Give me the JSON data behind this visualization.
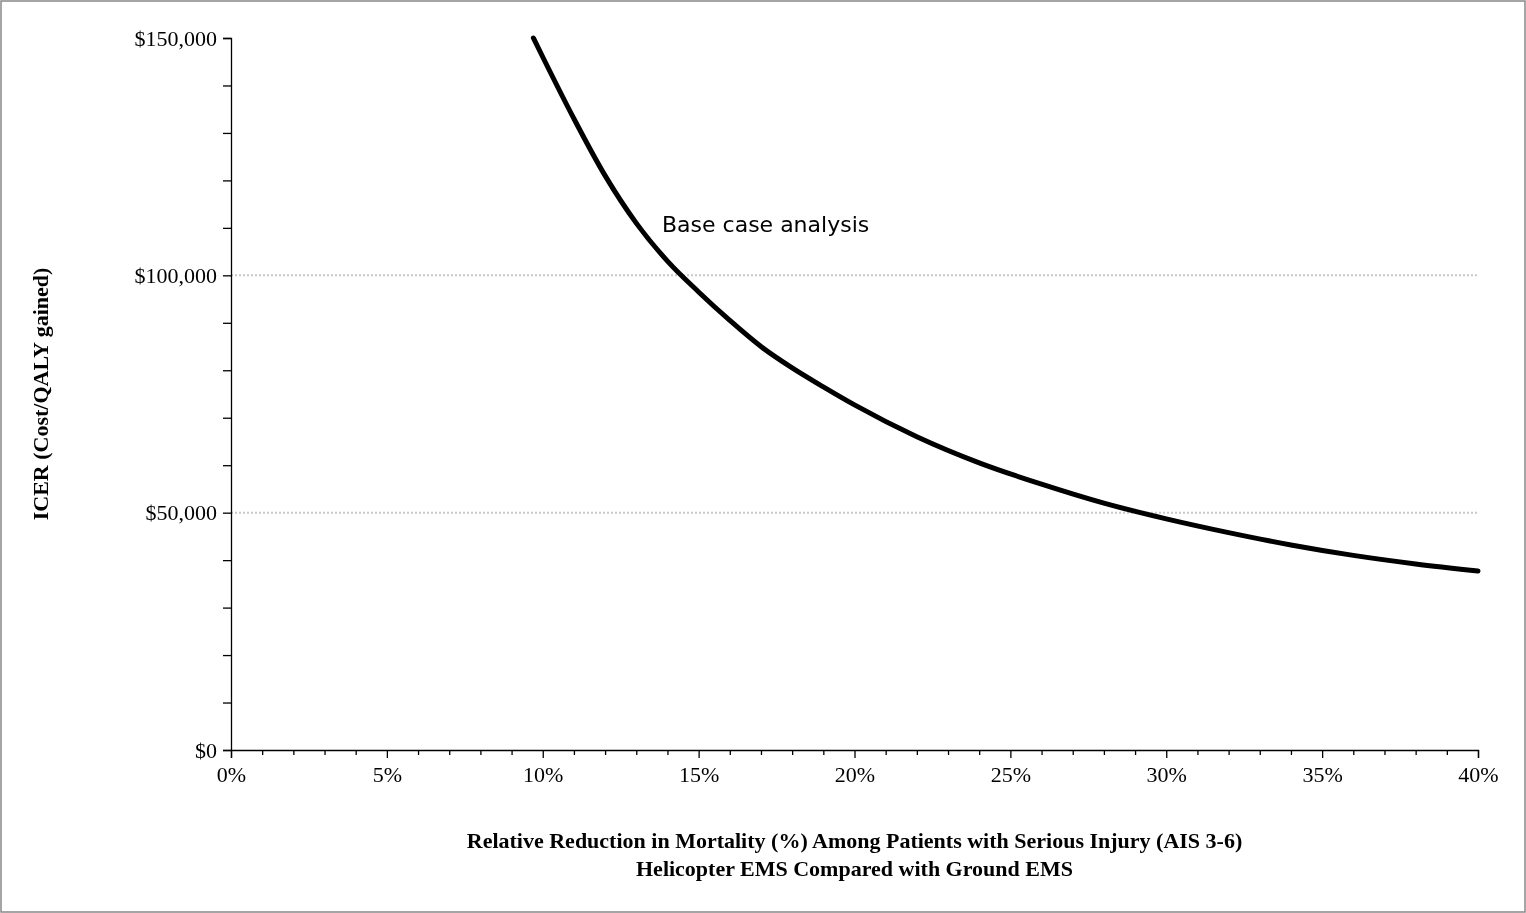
{
  "chart_data": {
    "type": "line",
    "xlabel": "Relative Reduction in Mortality (%) Among Patients with Serious Injury (AIS 3-6)\nHelicopter EMS Compared with Ground EMS",
    "ylabel": "ICER (Cost/QALY gained)",
    "x": [
      9.7,
      10,
      11,
      12,
      13,
      14,
      15,
      16,
      17,
      18,
      19,
      20,
      22,
      24,
      26,
      28,
      30,
      32,
      34,
      36,
      38,
      40
    ],
    "series": [
      {
        "color": "#000000",
        "values": [
          150000,
          146000,
          133000,
          121000,
          111000,
          103000,
          96500,
          90500,
          85000,
          80500,
          76500,
          72700,
          66000,
          60500,
          56000,
          52000,
          48700,
          45800,
          43200,
          41000,
          39200,
          37700
        ]
      }
    ],
    "xlim": [
      0,
      40
    ],
    "xticks": [
      {
        "value": 0,
        "label": "0%"
      },
      {
        "value": 1,
        "label": null
      },
      {
        "value": 2,
        "label": null
      },
      {
        "value": 3,
        "label": null
      },
      {
        "value": 4,
        "label": null
      },
      {
        "value": 5,
        "label": "5%"
      },
      {
        "value": 6,
        "label": null
      },
      {
        "value": 7,
        "label": null
      },
      {
        "value": 8,
        "label": null
      },
      {
        "value": 9,
        "label": null
      },
      {
        "value": 10,
        "label": "10%"
      },
      {
        "value": 11,
        "label": null
      },
      {
        "value": 12,
        "label": null
      },
      {
        "value": 13,
        "label": null
      },
      {
        "value": 14,
        "label": null
      },
      {
        "value": 15,
        "label": "15%"
      },
      {
        "value": 16,
        "label": null
      },
      {
        "value": 17,
        "label": null
      },
      {
        "value": 18,
        "label": null
      },
      {
        "value": 19,
        "label": null
      },
      {
        "value": 20,
        "label": "20%"
      },
      {
        "value": 21,
        "label": null
      },
      {
        "value": 22,
        "label": null
      },
      {
        "value": 23,
        "label": null
      },
      {
        "value": 24,
        "label": null
      },
      {
        "value": 25,
        "label": "25%"
      },
      {
        "value": 26,
        "label": null
      },
      {
        "value": 27,
        "label": null
      },
      {
        "value": 28,
        "label": null
      },
      {
        "value": 29,
        "label": null
      },
      {
        "value": 30,
        "label": "30%"
      },
      {
        "value": 31,
        "label": null
      },
      {
        "value": 32,
        "label": null
      },
      {
        "value": 33,
        "label": null
      },
      {
        "value": 34,
        "label": null
      },
      {
        "value": 35,
        "label": "35%"
      },
      {
        "value": 36,
        "label": null
      },
      {
        "value": 37,
        "label": null
      },
      {
        "value": 38,
        "label": null
      },
      {
        "value": 39,
        "label": null
      },
      {
        "value": 40,
        "label": "40%"
      }
    ],
    "ylim": [
      0,
      150000
    ],
    "yticks": [
      {
        "value": 0,
        "label": "$0"
      },
      {
        "value": 10000,
        "label": null
      },
      {
        "value": 20000,
        "label": null
      },
      {
        "value": 30000,
        "label": null
      },
      {
        "value": 40000,
        "label": null
      },
      {
        "value": 50000,
        "label": "$50,000"
      },
      {
        "value": 60000,
        "label": null
      },
      {
        "value": 70000,
        "label": null
      },
      {
        "value": 80000,
        "label": null
      },
      {
        "value": 90000,
        "label": null
      },
      {
        "value": 100000,
        "label": "$100,000"
      },
      {
        "value": 110000,
        "label": null
      },
      {
        "value": 120000,
        "label": null
      },
      {
        "value": 130000,
        "label": null
      },
      {
        "value": 140000,
        "label": null
      },
      {
        "value": 150000,
        "label": "$150,000"
      }
    ],
    "grid": "y",
    "marker": "none",
    "line_style": "solid",
    "annotations": [
      "Base case analysis"
    ]
  }
}
